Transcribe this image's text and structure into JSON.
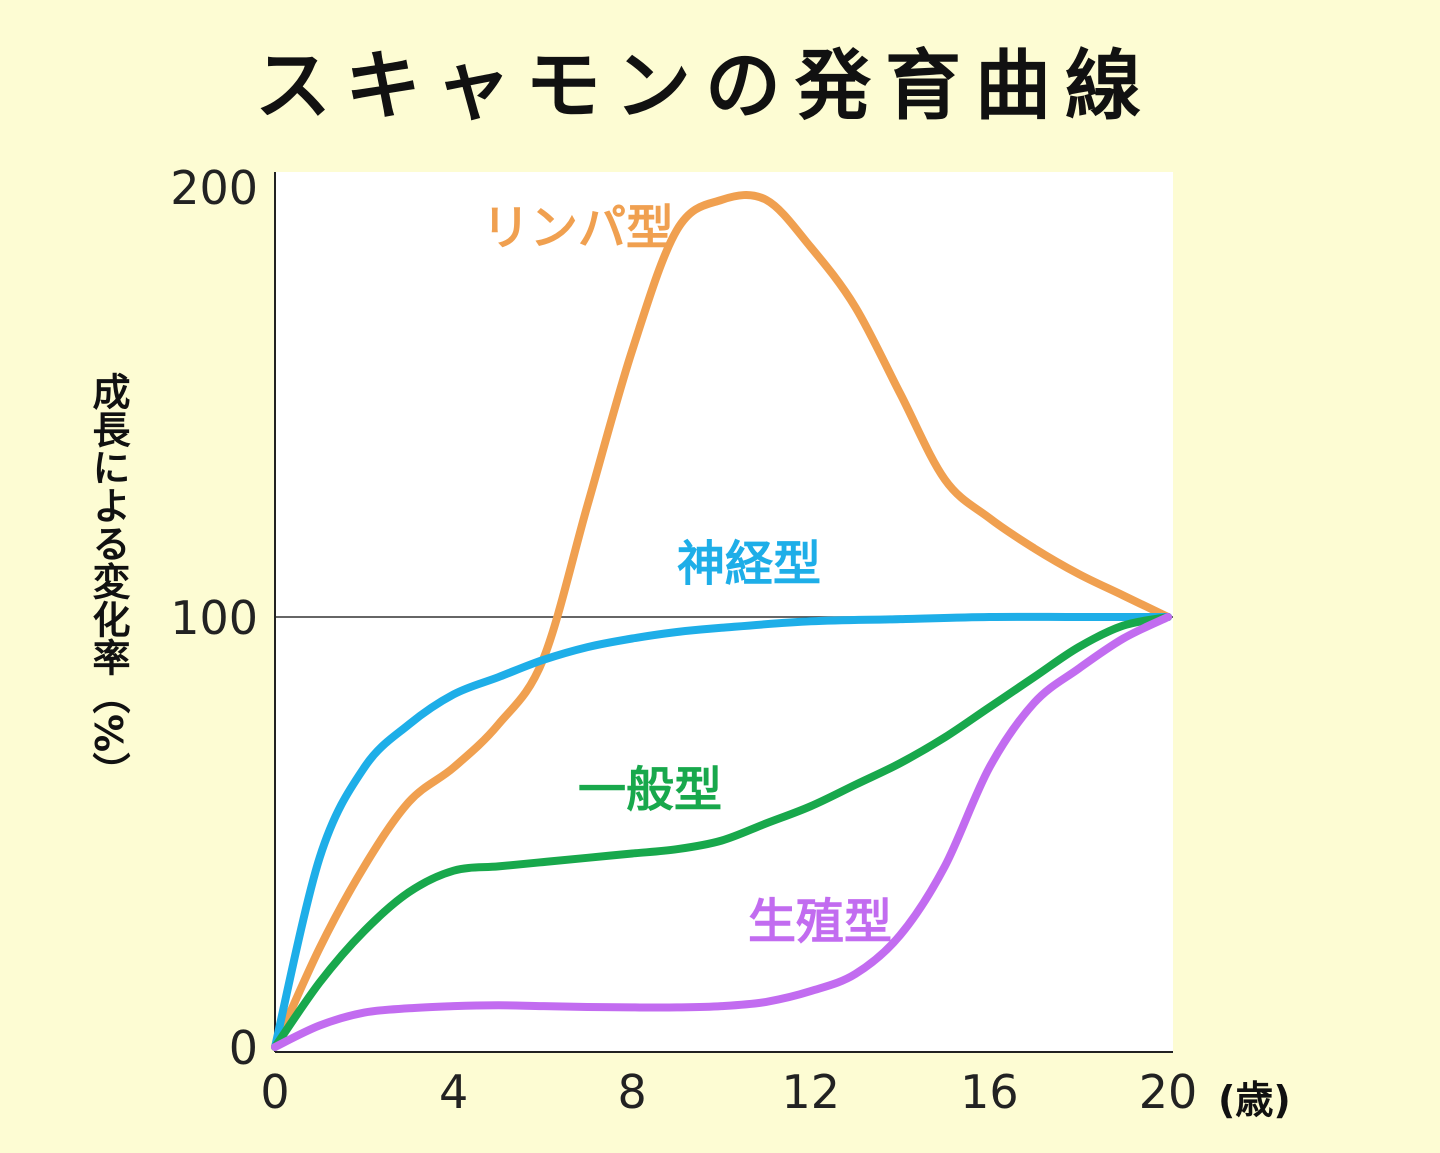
{
  "chart_data": {
    "type": "line",
    "title": "スキャモンの発育曲線",
    "ylabel": "成長による変化率（%）",
    "xunit": "(歳)",
    "xlim": [
      0,
      20
    ],
    "ylim": [
      0,
      200
    ],
    "xticks": [
      "0",
      "4",
      "8",
      "12",
      "16",
      "20"
    ],
    "yticks": [
      "0",
      "100",
      "200"
    ],
    "reference_line": 100,
    "background_color": "#fdfcd3",
    "plot_background_color": "#ffffff",
    "series": [
      {
        "name": "リンパ型",
        "color": "#f0a050",
        "x": [
          0,
          1,
          2,
          3,
          4,
          5,
          6,
          7,
          8,
          9,
          10,
          11,
          12,
          13,
          14,
          15,
          16,
          17,
          18,
          19,
          20
        ],
        "y": [
          0,
          23,
          42,
          57,
          65,
          75,
          90,
          126,
          162,
          190,
          197,
          197,
          186,
          172,
          152,
          132,
          123,
          116,
          110,
          105,
          100
        ]
      },
      {
        "name": "神経型",
        "color": "#1eaee8",
        "x": [
          0,
          1,
          2,
          3,
          4,
          5,
          6,
          7,
          8,
          9,
          10,
          12,
          14,
          16,
          18,
          20
        ],
        "y": [
          0,
          44,
          65,
          75,
          82,
          86,
          90,
          93,
          95,
          96.5,
          97.5,
          99,
          99.5,
          100,
          100,
          100
        ]
      },
      {
        "name": "一般型",
        "color": "#18a84c",
        "x": [
          0,
          1,
          2,
          3,
          4,
          5,
          6,
          7,
          8,
          9,
          10,
          11,
          12,
          13,
          14,
          15,
          16,
          17,
          18,
          19,
          20
        ],
        "y": [
          0,
          15,
          27,
          36,
          41,
          42,
          43,
          44,
          45,
          46,
          48,
          52,
          56,
          61,
          66,
          72,
          79,
          86,
          93,
          98,
          100
        ]
      },
      {
        "name": "生殖型",
        "color": "#c26cf0",
        "x": [
          0,
          1,
          2,
          3,
          4,
          5,
          6,
          7,
          8,
          9,
          10,
          11,
          12,
          13,
          14,
          15,
          16,
          17,
          18,
          19,
          20
        ],
        "y": [
          0,
          5,
          8,
          9,
          9.5,
          9.7,
          9.5,
          9.3,
          9.2,
          9.2,
          9.5,
          10.5,
          13,
          17,
          26,
          42,
          65,
          80,
          88,
          95,
          100
        ]
      }
    ]
  }
}
